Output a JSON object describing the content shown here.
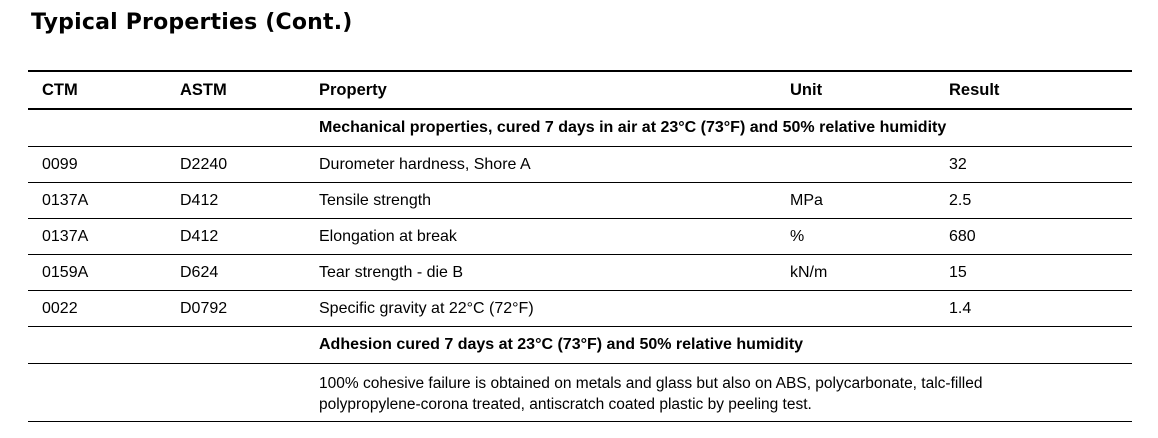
{
  "title": "Typical Properties (Cont.)",
  "table": {
    "columns": [
      "CTM",
      "ASTM",
      "Property",
      "Unit",
      "Result"
    ],
    "sections": [
      {
        "heading": "Mechanical properties, cured 7 days in air at 23°C (73°F) and 50% relative humidity",
        "rows": [
          {
            "ctm": "0099",
            "astm": "D2240",
            "property": "Durometer hardness, Shore A",
            "result": 32
          },
          {
            "ctm": "0137A",
            "astm": "D412",
            "property": "Tensile strength",
            "unit": "MPa",
            "result": 2.5
          },
          {
            "ctm": "0137A",
            "astm": "D412",
            "property": "Elongation at break",
            "unit": "%",
            "result": 680
          },
          {
            "ctm": "0159A",
            "astm": "D624",
            "property": "Tear strength - die B",
            "unit": "kN/m",
            "result": 15
          },
          {
            "ctm": "0022",
            "astm": "D0792",
            "property": "Specific gravity at 22°C (72°F)",
            "result": 1.4
          }
        ]
      },
      {
        "heading": "Adhesion cured 7 days at 23°C (73°F) and 50% relative humidity",
        "note": "100% cohesive failure is obtained on metals and glass but also on ABS, polycarbonate, talc-filled polypropylene-corona treated, antiscratch coated plastic by peeling test."
      }
    ]
  }
}
